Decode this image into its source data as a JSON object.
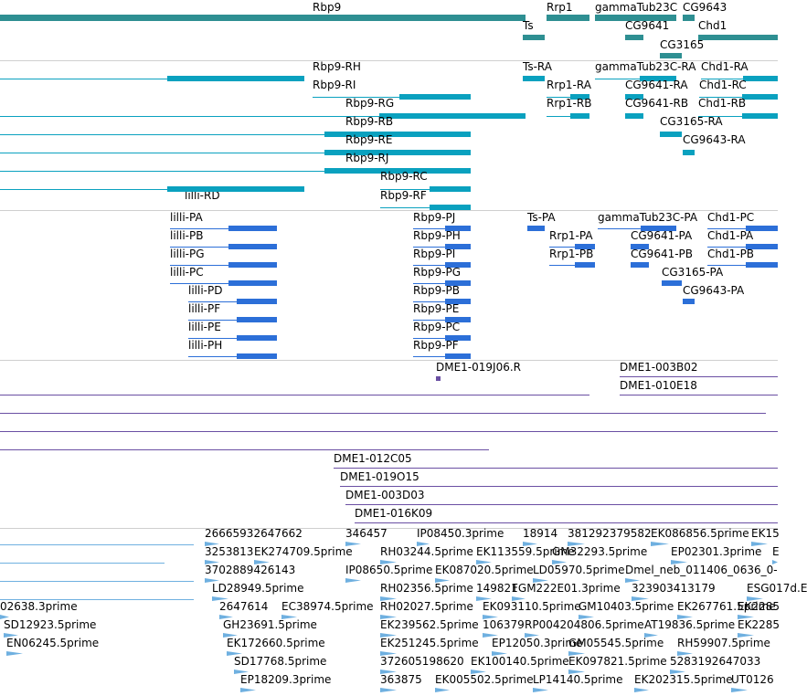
{
  "colors": {
    "gene": "#2e8f92",
    "mrna": "#0aa1bf",
    "cds": "#2c6fd8",
    "clone": "#6a4fa3",
    "est": "#6fb0e0",
    "separator": "#cfcfcf"
  },
  "tracks": [
    {
      "id": "genes",
      "color": "#2e8f92",
      "features": [
        {
          "label": "Rbp9"
        },
        {
          "label": "Rrp1"
        },
        {
          "label": "gammaTub23C"
        },
        {
          "label": "CG9643"
        },
        {
          "label": "Ts"
        },
        {
          "label": "CG9641"
        },
        {
          "label": "Chd1"
        },
        {
          "label": "CG3165"
        }
      ]
    },
    {
      "id": "transcripts",
      "color": "#0aa1bf",
      "features": [
        {
          "label": "Rbp9-RH"
        },
        {
          "label": "Ts-RA"
        },
        {
          "label": "gammaTub23C-RA"
        },
        {
          "label": "Chd1-RA"
        },
        {
          "label": "Rbp9-RI"
        },
        {
          "label": "Rrp1-RA"
        },
        {
          "label": "CG9641-RA"
        },
        {
          "label": "Chd1-RC"
        },
        {
          "label": "Rbp9-RG"
        },
        {
          "label": "Rrp1-RB"
        },
        {
          "label": "CG9641-RB"
        },
        {
          "label": "Chd1-RB"
        },
        {
          "label": "Rbp9-RB"
        },
        {
          "label": "CG3165-RA"
        },
        {
          "label": "Rbp9-RE"
        },
        {
          "label": "CG9643-RA"
        },
        {
          "label": "Rbp9-RJ"
        },
        {
          "label": "Rbp9-RC"
        },
        {
          "label": "lilli-RD"
        },
        {
          "label": "Rbp9-RF"
        }
      ]
    },
    {
      "id": "proteins",
      "color": "#2c6fd8",
      "features": [
        {
          "label": "lilli-PA"
        },
        {
          "label": "Rbp9-PJ"
        },
        {
          "label": "Ts-PA"
        },
        {
          "label": "gammaTub23C-PA"
        },
        {
          "label": "Chd1-PC"
        },
        {
          "label": "lilli-PB"
        },
        {
          "label": "Rbp9-PH"
        },
        {
          "label": "Rrp1-PA"
        },
        {
          "label": "CG9641-PA"
        },
        {
          "label": "Chd1-PA"
        },
        {
          "label": "lilli-PG"
        },
        {
          "label": "Rbp9-PI"
        },
        {
          "label": "CG9641-PB"
        },
        {
          "label": "Rrp1-PB"
        },
        {
          "label": "Chd1-PB"
        },
        {
          "label": "lilli-PC"
        },
        {
          "label": "Rbp9-PG"
        },
        {
          "label": "CG3165-PA"
        },
        {
          "label": "lilli-PD"
        },
        {
          "label": "Rbp9-PB"
        },
        {
          "label": "CG9643-PA"
        },
        {
          "label": "lilli-PF"
        },
        {
          "label": "Rbp9-PE"
        },
        {
          "label": "lilli-PE"
        },
        {
          "label": "Rbp9-PC"
        },
        {
          "label": "lilli-PH"
        },
        {
          "label": "Rbp9-PF"
        }
      ]
    },
    {
      "id": "clones",
      "color": "#6a4fa3",
      "features": [
        {
          "label": "DME1-019J06.R"
        },
        {
          "label": "DME1-003B02"
        },
        {
          "label": "DME1-010E18"
        },
        {
          "label": "DME1-012C05"
        },
        {
          "label": "DME1-019O15"
        },
        {
          "label": "DME1-003D03"
        },
        {
          "label": "DME1-016K09"
        }
      ]
    },
    {
      "id": "ests",
      "color": "#6fb0e0",
      "features": [
        {
          "label": "26665932647662"
        },
        {
          "label": "346457"
        },
        {
          "label": "IP08450.3prime"
        },
        {
          "label": "18914"
        },
        {
          "label": "381292379582"
        },
        {
          "label": "EK086856.5prime"
        },
        {
          "label": "EK15"
        },
        {
          "label": "3253813"
        },
        {
          "label": "EK274709.5prime"
        },
        {
          "label": "RH03244.5prime"
        },
        {
          "label": "EK113559.5prime"
        },
        {
          "label": "GM32293.5prime"
        },
        {
          "label": "EP02301.3prime"
        },
        {
          "label": "E"
        },
        {
          "label": "3702889426143"
        },
        {
          "label": "IP08650.5prime"
        },
        {
          "label": "EK087020.5prime"
        },
        {
          "label": "LD05970.5prime"
        },
        {
          "label": "Dmel_neb_011406_0636_0-"
        },
        {
          "label": "LD28949.5prime"
        },
        {
          "label": "RH02356.5prime"
        },
        {
          "label": "149821"
        },
        {
          "label": "FGM222E01.3prime"
        },
        {
          "label": "323903413179"
        },
        {
          "label": "ESG017d.E"
        },
        {
          "label": "02638.3prime"
        },
        {
          "label": "2647614"
        },
        {
          "label": "EC38974.5prime"
        },
        {
          "label": "RH02027.5prime"
        },
        {
          "label": "EK093110.5prime"
        },
        {
          "label": "GM10403.5prime"
        },
        {
          "label": "EK267761.5prime"
        },
        {
          "label": "EK2285"
        },
        {
          "label": "SD12923.5prime"
        },
        {
          "label": "GH23691.5prime"
        },
        {
          "label": "EK239562.5prime"
        },
        {
          "label": "106379"
        },
        {
          "label": "RP004204806.5prime"
        },
        {
          "label": "AT19836.5prime"
        },
        {
          "label": "EK2285"
        },
        {
          "label": "EN06245.5prime"
        },
        {
          "label": "EK172660.5prime"
        },
        {
          "label": "EK251245.5prime"
        },
        {
          "label": "EP12050.3prime"
        },
        {
          "label": "GM05545.5prime"
        },
        {
          "label": "RH59907.5prime"
        },
        {
          "label": "SD17768.5prime"
        },
        {
          "label": "372605198620"
        },
        {
          "label": "EK100140.5prime"
        },
        {
          "label": "EK097821.5prime"
        },
        {
          "label": "5283192647033"
        },
        {
          "label": "EP18209.3prime"
        },
        {
          "label": "363875"
        },
        {
          "label": "EK005502.5prime"
        },
        {
          "label": "LP14140.5prime"
        },
        {
          "label": "EK202315.5prime"
        },
        {
          "label": "UT0126"
        }
      ]
    }
  ]
}
